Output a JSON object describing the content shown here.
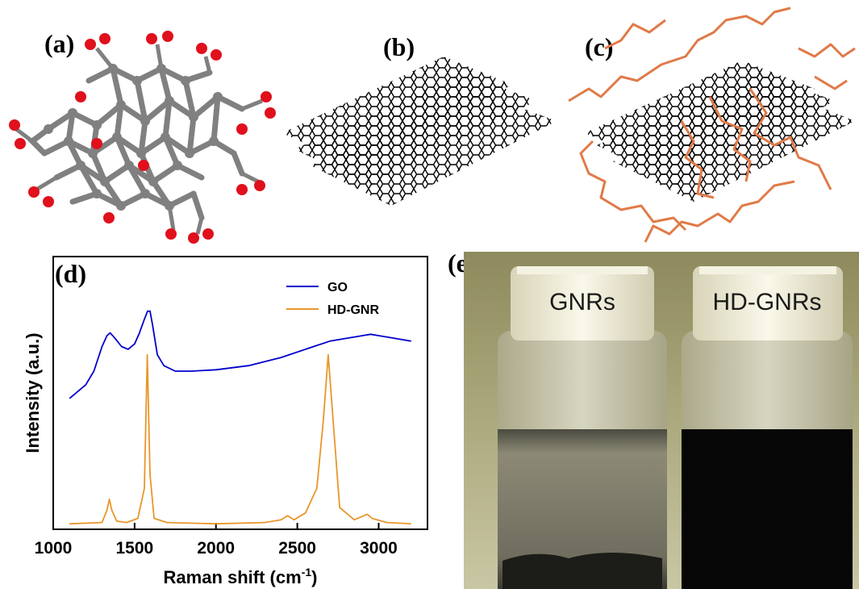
{
  "panels": {
    "a": {
      "label": "(a)"
    },
    "b": {
      "label": "(b)"
    },
    "c": {
      "label": "(c)"
    },
    "d": {
      "label": "(d)"
    },
    "e": {
      "label": "(e)",
      "vial_left": "GNRs",
      "vial_right": "HD-GNRs"
    }
  },
  "chart_data": {
    "type": "line",
    "xlabel": "Raman shift (cm",
    "xlabel_sup": "-1",
    "xlabel_end": ")",
    "ylabel": "Intensity (a.u.)",
    "xlim": [
      1000,
      3300
    ],
    "xticks": [
      "1000",
      "1500",
      "2000",
      "2500",
      "3000"
    ],
    "legend_position": "top-right",
    "series": [
      {
        "name": "GO",
        "color": "#0000cc",
        "x": [
          1100,
          1200,
          1250,
          1300,
          1330,
          1350,
          1380,
          1420,
          1460,
          1500,
          1530,
          1560,
          1580,
          1595,
          1610,
          1640,
          1680,
          1750,
          1850,
          2000,
          2200,
          2400,
          2600,
          2700,
          2800,
          2900,
          2950,
          3000,
          3100,
          3200
        ],
        "y": [
          0.48,
          0.53,
          0.58,
          0.67,
          0.71,
          0.72,
          0.7,
          0.67,
          0.66,
          0.68,
          0.72,
          0.77,
          0.8,
          0.8,
          0.75,
          0.64,
          0.6,
          0.58,
          0.58,
          0.585,
          0.6,
          0.63,
          0.67,
          0.69,
          0.7,
          0.71,
          0.715,
          0.71,
          0.7,
          0.69
        ]
      },
      {
        "name": "HD-GNR",
        "color": "#e8962a",
        "x": [
          1100,
          1300,
          1330,
          1345,
          1360,
          1390,
          1450,
          1520,
          1560,
          1578,
          1595,
          1620,
          1700,
          2000,
          2300,
          2400,
          2440,
          2480,
          2550,
          2620,
          2660,
          2690,
          2720,
          2760,
          2850,
          2930,
          2960,
          3050,
          3200
        ],
        "y": [
          0.02,
          0.025,
          0.07,
          0.11,
          0.07,
          0.03,
          0.025,
          0.04,
          0.15,
          0.64,
          0.2,
          0.04,
          0.025,
          0.02,
          0.025,
          0.035,
          0.05,
          0.035,
          0.06,
          0.15,
          0.4,
          0.64,
          0.4,
          0.08,
          0.035,
          0.055,
          0.04,
          0.025,
          0.02
        ]
      }
    ]
  }
}
